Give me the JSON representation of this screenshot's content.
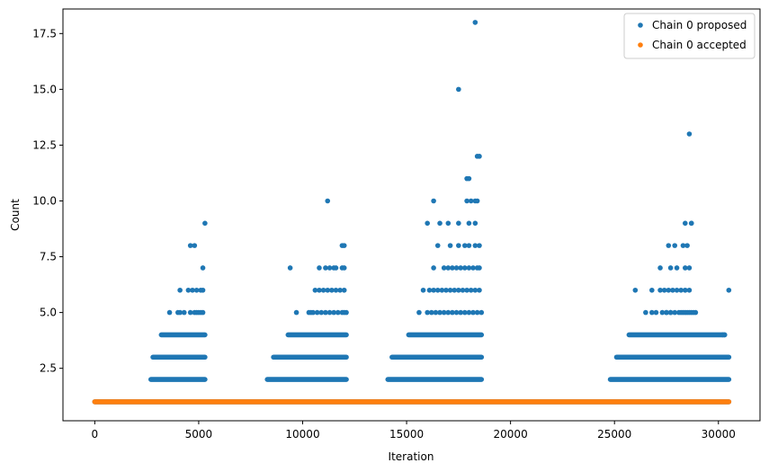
{
  "chart_data": {
    "type": "scatter",
    "title": "",
    "xlabel": "Iteration",
    "ylabel": "Count",
    "xlim": [
      -1530,
      32000
    ],
    "ylim": [
      0.15,
      18.6
    ],
    "grid": false,
    "legend_position": "top-right",
    "x_ticks": [
      0,
      5000,
      10000,
      15000,
      20000,
      25000,
      30000
    ],
    "x_tick_labels": [
      "0",
      "5000",
      "10000",
      "15000",
      "20000",
      "25000",
      "30000"
    ],
    "y_ticks": [
      2.5,
      5.0,
      7.5,
      10.0,
      12.5,
      15.0,
      17.5
    ],
    "y_tick_labels": [
      "2.5",
      "5.0",
      "7.5",
      "10.0",
      "12.5",
      "15.0",
      "17.5"
    ],
    "series": [
      {
        "name": "Chain 0 proposed",
        "color": "#1f77b4",
        "bands": [
          {
            "y": 1,
            "x_range": [
              0,
              30500
            ]
          },
          {
            "y": 2,
            "x_range": [
              2700,
              5300
            ]
          },
          {
            "y": 2,
            "x_range": [
              8300,
              12100
            ]
          },
          {
            "y": 2,
            "x_range": [
              14100,
              18600
            ]
          },
          {
            "y": 2,
            "x_range": [
              24800,
              30500
            ]
          },
          {
            "y": 3,
            "x_range": [
              2800,
              5300
            ]
          },
          {
            "y": 3,
            "x_range": [
              8600,
              12100
            ]
          },
          {
            "y": 3,
            "x_range": [
              14300,
              18600
            ]
          },
          {
            "y": 3,
            "x_range": [
              25100,
              30500
            ]
          },
          {
            "y": 4,
            "x_range": [
              3200,
              5300
            ]
          },
          {
            "y": 4,
            "x_range": [
              9300,
              12100
            ]
          },
          {
            "y": 4,
            "x_range": [
              15100,
              18600
            ]
          },
          {
            "y": 4,
            "x_range": [
              25700,
              30300
            ]
          }
        ],
        "x": [
          3600,
          4000,
          4100,
          4300,
          4600,
          4800,
          4900,
          5000,
          5100,
          5200,
          4100,
          4500,
          4700,
          4900,
          5100,
          5200,
          4600,
          4800,
          5200,
          5300,
          9700,
          10300,
          10400,
          10500,
          10700,
          10900,
          11100,
          11300,
          11500,
          11700,
          11900,
          12000,
          12100,
          10600,
          10800,
          11000,
          11200,
          11400,
          11600,
          11800,
          12000,
          9400,
          10800,
          11100,
          11300,
          11500,
          11600,
          11900,
          12000,
          11900,
          12000,
          11200,
          15600,
          16000,
          16200,
          16400,
          16600,
          16800,
          17000,
          17200,
          17400,
          17600,
          17800,
          18000,
          18200,
          18400,
          18600,
          15800,
          16100,
          16300,
          16500,
          16700,
          16900,
          17100,
          17300,
          17500,
          17700,
          17900,
          18100,
          18300,
          18500,
          16300,
          16800,
          17000,
          17200,
          17400,
          17600,
          17800,
          18000,
          18200,
          18400,
          18500,
          16500,
          17100,
          17500,
          17800,
          18000,
          18300,
          18500,
          16000,
          16600,
          17000,
          17500,
          18000,
          18300,
          16300,
          17900,
          18100,
          18300,
          18400,
          17900,
          18000,
          18400,
          18500,
          17500,
          18300,
          26500,
          26800,
          27000,
          27300,
          27500,
          27700,
          27900,
          28100,
          28300,
          28500,
          28700,
          28900,
          30200,
          30300,
          26000,
          26800,
          27200,
          27400,
          27600,
          27800,
          28000,
          28200,
          28400,
          28600,
          30500,
          27200,
          27700,
          28000,
          28400,
          28600,
          27600,
          27900,
          28300,
          28500,
          27500,
          27700,
          28200,
          28400,
          28600,
          28800,
          28700,
          28400,
          28700,
          28600
        ],
        "y": [
          5,
          5,
          5,
          5,
          5,
          5,
          5,
          5,
          5,
          5,
          6,
          6,
          6,
          6,
          6,
          6,
          8,
          8,
          7,
          9,
          5,
          5,
          5,
          5,
          5,
          5,
          5,
          5,
          5,
          5,
          5,
          5,
          5,
          6,
          6,
          6,
          6,
          6,
          6,
          6,
          6,
          7,
          7,
          7,
          7,
          7,
          7,
          7,
          7,
          8,
          8,
          10,
          5,
          5,
          5,
          5,
          5,
          5,
          5,
          5,
          5,
          5,
          5,
          5,
          5,
          5,
          5,
          6,
          6,
          6,
          6,
          6,
          6,
          6,
          6,
          6,
          6,
          6,
          6,
          6,
          6,
          7,
          7,
          7,
          7,
          7,
          7,
          7,
          7,
          7,
          7,
          7,
          8,
          8,
          8,
          8,
          8,
          8,
          8,
          9,
          9,
          9,
          9,
          9,
          9,
          10,
          10,
          10,
          10,
          10,
          11,
          11,
          12,
          12,
          15,
          18,
          5,
          5,
          5,
          5,
          5,
          5,
          5,
          5,
          5,
          5,
          5,
          5,
          4,
          4,
          6,
          6,
          6,
          6,
          6,
          6,
          6,
          6,
          6,
          6,
          6,
          7,
          7,
          7,
          7,
          7,
          8,
          8,
          8,
          8,
          5,
          5,
          5,
          5,
          5,
          5,
          9,
          9,
          9,
          13
        ]
      },
      {
        "name": "Chain 0 accepted",
        "color": "#ff7f0e",
        "bands": [
          {
            "y": 1,
            "x_range": [
              0,
              30500
            ]
          }
        ],
        "x": [],
        "y": []
      }
    ]
  }
}
